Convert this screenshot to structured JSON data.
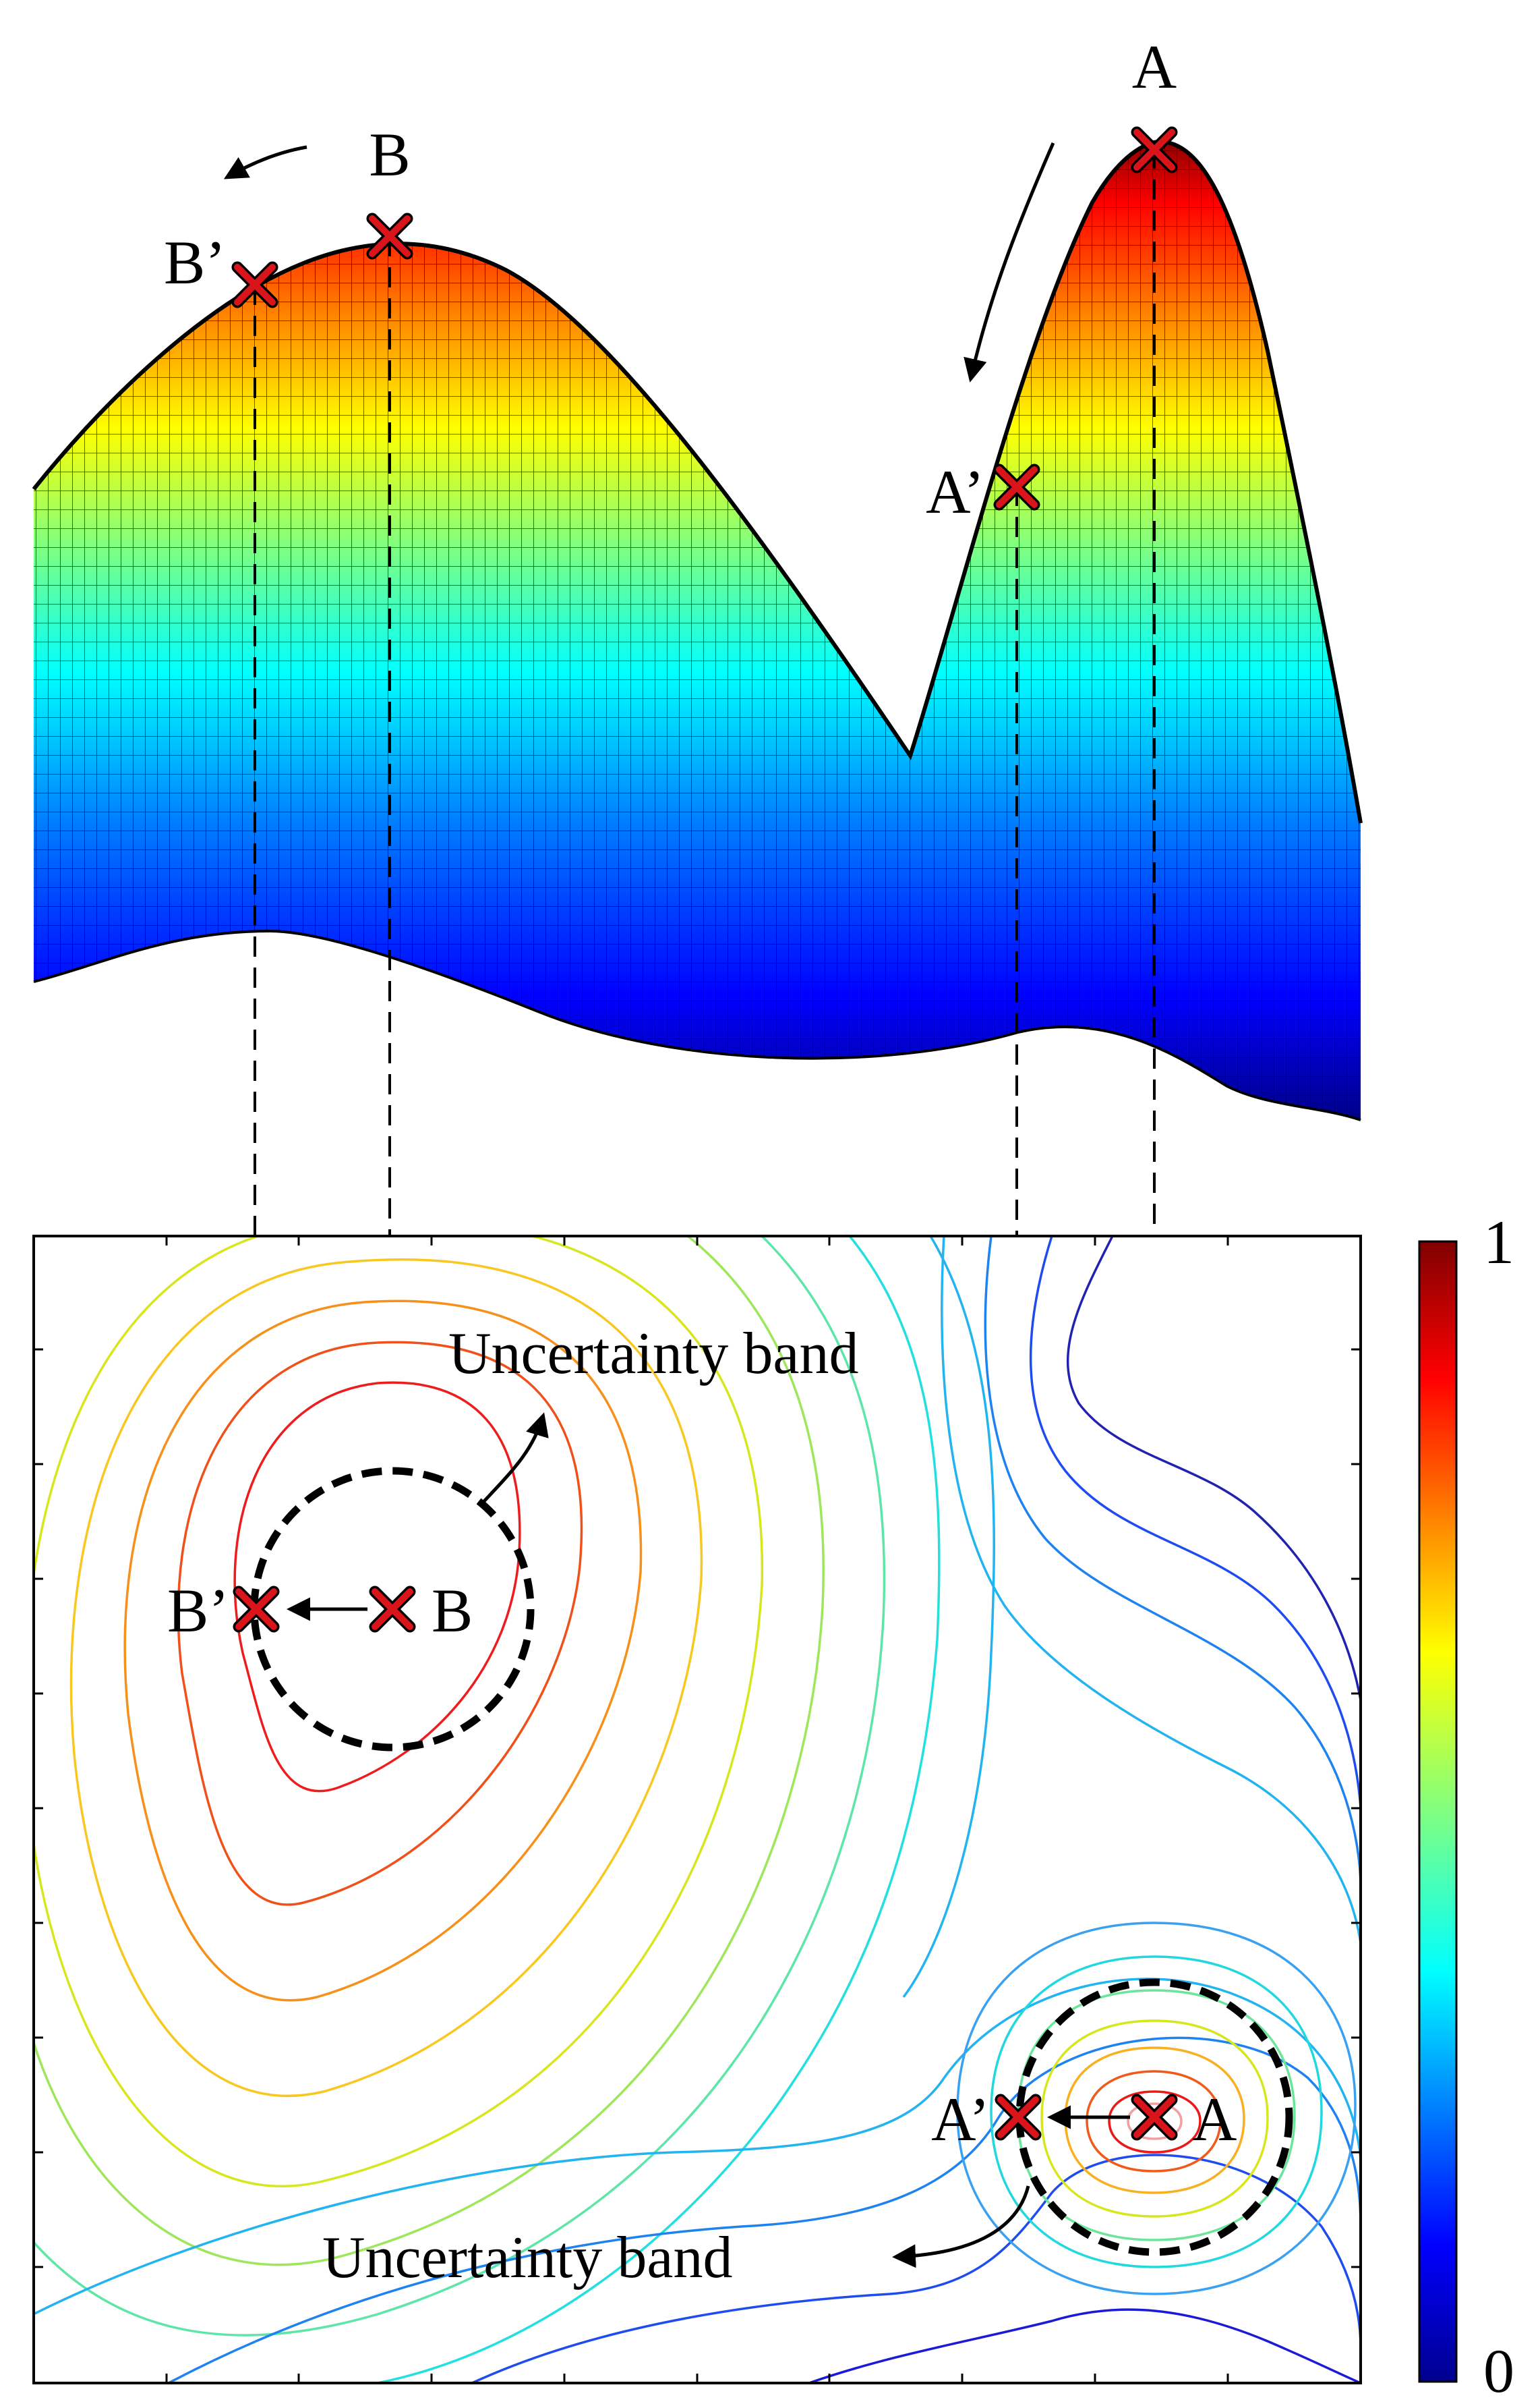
{
  "surface": {
    "peak_a_label": "A",
    "peak_a_shifted_label": "A’",
    "peak_b_label": "B",
    "peak_b_shifted_label": "B’"
  },
  "contour": {
    "point_a_label": "A",
    "point_a_shifted_label": "A’",
    "point_b_label": "B",
    "point_b_shifted_label": "B’",
    "band_label_top": "Uncertainty band",
    "band_label_bottom": "Uncertainty band"
  },
  "colorbar": {
    "max_label": "1",
    "min_label": "0",
    "colormap": [
      "#00008f",
      "#0000ff",
      "#0080ff",
      "#00ffff",
      "#80ff80",
      "#ffff00",
      "#ff8000",
      "#ff0000",
      "#800000"
    ]
  },
  "colors": {
    "marker_fill": "#d9141b",
    "marker_outline": "#000000",
    "guide_line": "#000000"
  }
}
